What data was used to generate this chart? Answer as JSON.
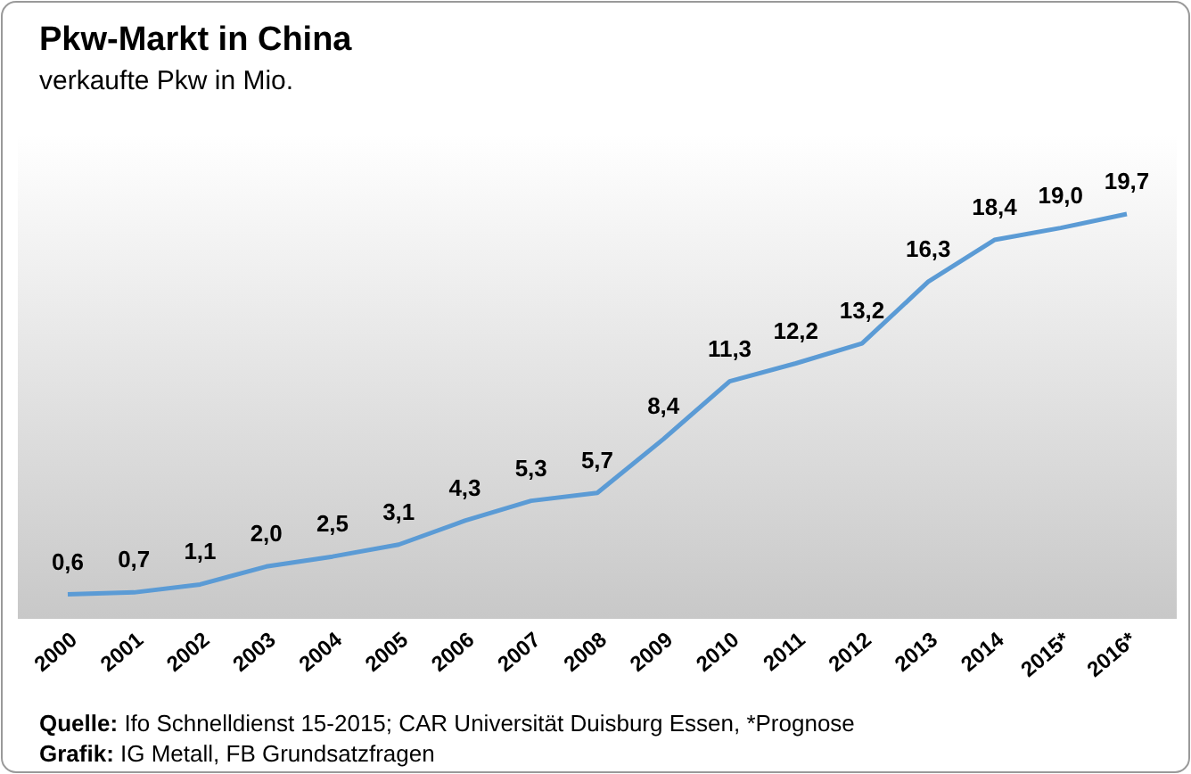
{
  "chart_data": {
    "type": "line",
    "title": "Pkw-Markt in China",
    "subtitle": "verkaufte Pkw in Mio.",
    "categories": [
      "2000",
      "2001",
      "2002",
      "2003",
      "2004",
      "2005",
      "2006",
      "2007",
      "2008",
      "2009",
      "2010",
      "2011",
      "2012",
      "2013",
      "2014",
      "2015*",
      "2016*"
    ],
    "series": [
      {
        "color": "#5b9bd5",
        "values": [
          0.6,
          0.7,
          1.1,
          2.0,
          2.5,
          3.1,
          4.3,
          5.3,
          5.7,
          8.4,
          11.3,
          12.2,
          13.2,
          16.3,
          18.4,
          19.0,
          19.7
        ],
        "value_labels": [
          "0,6",
          "0,7",
          "1,1",
          "2,0",
          "2,5",
          "3,1",
          "4,3",
          "5,3",
          "5,7",
          "8,4",
          "11,3",
          "12,2",
          "13,2",
          "16,3",
          "18,4",
          "19,0",
          "19,7"
        ]
      }
    ],
    "marker": "none",
    "line_style": "solid",
    "annotations": [
      "Quelle: Ifo Schnelldienst 15-2015; CAR Universität Duisburg Essen, *Prognose",
      "Grafik: IG Metall, FB Grundsatzfragen"
    ]
  }
}
